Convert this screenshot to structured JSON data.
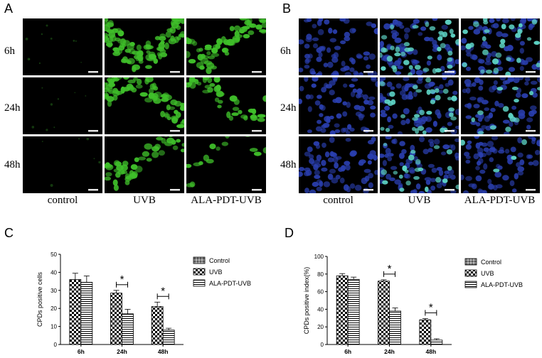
{
  "panels": {
    "A": {
      "letter": "A",
      "rows": [
        "6h",
        "24h",
        "48h"
      ],
      "cols": [
        "control",
        "UVB",
        "ALA-PDT-UVB"
      ]
    },
    "B": {
      "letter": "B",
      "rows": [
        "6h",
        "24h",
        "48h"
      ],
      "cols": [
        "control",
        "UVB",
        "ALA-PDT-UVB"
      ]
    },
    "C": {
      "letter": "C"
    },
    "D": {
      "letter": "D"
    }
  },
  "colors": {
    "green_stain": "#3fbf2a",
    "blue_stain": "#2a3fb0",
    "cyan_stain": "#5fd7c8"
  },
  "chart_data": [
    {
      "type": "bar",
      "categories": [
        "6h",
        "24h",
        "48h"
      ],
      "series": [
        {
          "name": "Control",
          "pattern": "diamond",
          "values": [
            null,
            null,
            null
          ]
        },
        {
          "name": "UVB",
          "pattern": "checker",
          "values": [
            36,
            28.5,
            21
          ]
        },
        {
          "name": "ALA-PDT-UVB",
          "pattern": "horizontal",
          "values": [
            34.5,
            17,
            8
          ]
        }
      ],
      "errors": [
        [
          3.5,
          1.5,
          2.5
        ],
        [
          3.5,
          2.5,
          1
        ]
      ],
      "ylabel": "CPDs positive cells",
      "ylim": [
        0,
        50
      ],
      "yticks": [
        0,
        10,
        20,
        30,
        40,
        50
      ],
      "significance": [
        "",
        "*",
        "*"
      ],
      "legend": "right"
    },
    {
      "type": "bar",
      "categories": [
        "6h",
        "24h",
        "48h"
      ],
      "series": [
        {
          "name": "Control",
          "pattern": "diamond",
          "values": [
            null,
            null,
            null
          ]
        },
        {
          "name": "UVB",
          "pattern": "checker",
          "values": [
            78,
            72,
            28
          ]
        },
        {
          "name": "ALA-PDT-UVB",
          "pattern": "horizontal",
          "values": [
            74,
            38,
            5
          ]
        }
      ],
      "errors": [
        [
          2.5,
          1.5,
          1.5
        ],
        [
          2.5,
          3.5,
          1.5
        ]
      ],
      "ylabel": "CPDs positive index(%)",
      "ylim": [
        0,
        100
      ],
      "yticks": [
        0,
        20,
        40,
        60,
        80,
        100
      ],
      "significance": [
        "",
        "*",
        "*"
      ],
      "legend": "right"
    }
  ]
}
